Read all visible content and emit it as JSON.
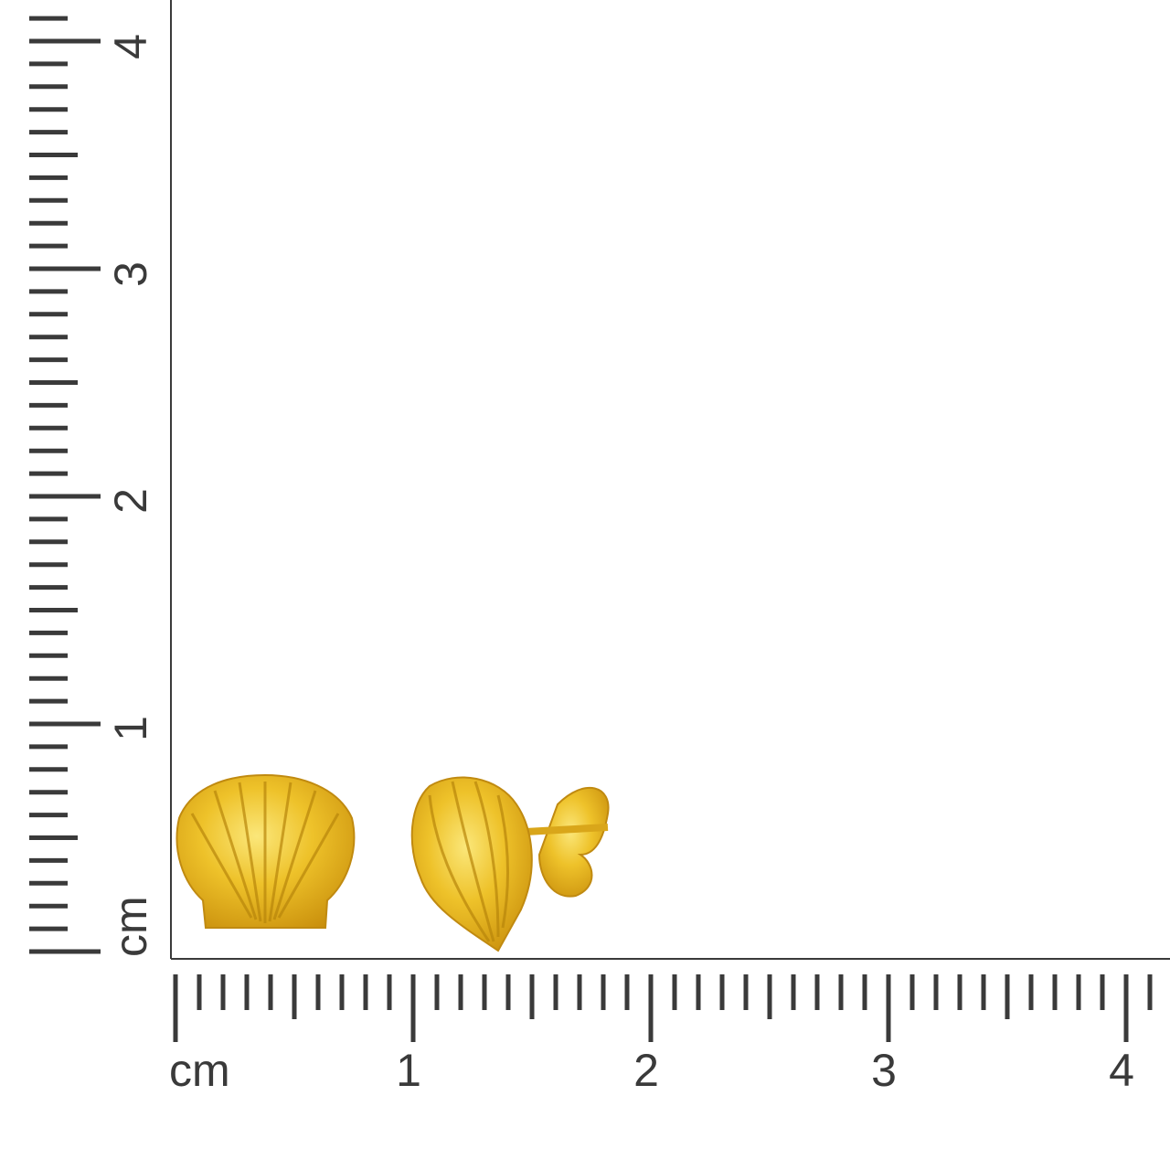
{
  "bottom_ruler": {
    "unit_label": "cm",
    "labels": [
      "1",
      "2",
      "3",
      "4"
    ]
  },
  "left_ruler": {
    "unit_label": "cm",
    "labels": [
      "1",
      "2",
      "3",
      "4"
    ]
  },
  "colors": {
    "ruler": "#3a3a3a",
    "gold": "#e0b21e",
    "gold_light": "#f7dc5a",
    "gold_dark": "#b8860b"
  },
  "product": {
    "items": [
      "shell-earring-front",
      "shell-earring-side"
    ]
  }
}
